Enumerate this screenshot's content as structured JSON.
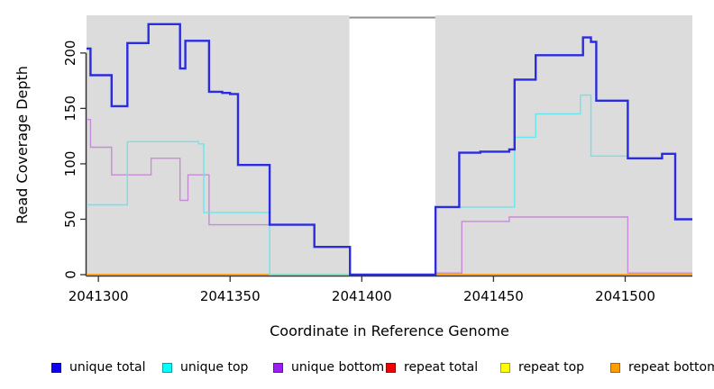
{
  "chart_data": {
    "type": "step",
    "title": "",
    "xlabel": "Coordinate in Reference Genome",
    "ylabel": "Read Coverage Depth",
    "xlim": [
      2041295.5,
      2041525.5
    ],
    "ylim": [
      0,
      234
    ],
    "xticks": [
      2041300,
      2041350,
      2041400,
      2041450,
      2041500
    ],
    "yticks": [
      0,
      50,
      100,
      150,
      200
    ],
    "grid": false,
    "plot_bg": "#dcdcdc",
    "outer_bg": "#ffffff",
    "axis_color": "#333333",
    "coverage_regions": [
      {
        "from": 2041295.5,
        "to": 2041395.3
      },
      {
        "from": 2041427.9,
        "to": 2041525.5
      }
    ],
    "gap": {
      "from": 2041395.3,
      "to": 2041427.9,
      "top_line_value": 232,
      "top_line_color": "#8f8f8f"
    },
    "series": [
      {
        "name": "repeat total",
        "line_color": "#e00000",
        "lwd": 1.2,
        "points": [
          [
            2041295.5,
            0
          ]
        ]
      },
      {
        "name": "repeat top",
        "line_color": "#ffff00",
        "lwd": 1.2,
        "points": [
          [
            2041295.5,
            0
          ]
        ]
      },
      {
        "name": "repeat bottom",
        "line_color": "#ff9d17",
        "lwd": 1.8,
        "points": [
          [
            2041295.5,
            0
          ]
        ]
      },
      {
        "name": "unique bottom",
        "line_color": "#c78ad8",
        "lwd": 1.4,
        "points": [
          [
            2041295.5,
            140
          ],
          [
            2041297,
            115
          ],
          [
            2041305,
            90
          ],
          [
            2041320,
            105
          ],
          [
            2041331,
            67
          ],
          [
            2041334,
            90
          ],
          [
            2041342,
            45
          ],
          [
            2041382,
            25
          ],
          [
            2041395.5,
            0
          ],
          [
            2041428,
            1.5
          ],
          [
            2041438,
            48
          ],
          [
            2041456,
            52
          ],
          [
            2041501,
            1.5
          ]
        ]
      },
      {
        "name": "unique top",
        "line_color": "#66e7ef",
        "lwd": 1.4,
        "points": [
          [
            2041295.5,
            63
          ],
          [
            2041311,
            120
          ],
          [
            2041338,
            118
          ],
          [
            2041340,
            56
          ],
          [
            2041365,
            0
          ],
          [
            2041428,
            61
          ],
          [
            2041458,
            124
          ],
          [
            2041466,
            145
          ],
          [
            2041483,
            162
          ],
          [
            2041487,
            107
          ],
          [
            2041501,
            105
          ],
          [
            2041514,
            109
          ],
          [
            2041519,
            50
          ]
        ]
      },
      {
        "name": "unique total",
        "line_color": "#2b2be0",
        "lwd": 2.4,
        "points": [
          [
            2041295.5,
            204
          ],
          [
            2041297,
            180
          ],
          [
            2041305,
            152
          ],
          [
            2041311,
            209
          ],
          [
            2041319,
            226
          ],
          [
            2041331,
            186
          ],
          [
            2041333,
            211
          ],
          [
            2041342,
            165
          ],
          [
            2041347,
            164
          ],
          [
            2041350,
            163
          ],
          [
            2041353,
            99
          ],
          [
            2041365,
            45
          ],
          [
            2041382,
            25
          ],
          [
            2041395.5,
            0
          ],
          [
            2041428,
            61
          ],
          [
            2041437,
            110
          ],
          [
            2041445,
            111
          ],
          [
            2041456,
            113
          ],
          [
            2041458,
            176
          ],
          [
            2041466,
            198
          ],
          [
            2041484,
            214
          ],
          [
            2041487,
            210
          ],
          [
            2041489,
            157
          ],
          [
            2041501,
            105
          ],
          [
            2041514,
            109
          ],
          [
            2041519,
            50
          ]
        ]
      }
    ],
    "legend": {
      "position": "bottom",
      "entries": [
        {
          "label": "unique total",
          "color": "#0d00f0"
        },
        {
          "label": "unique top",
          "color": "#00ffff"
        },
        {
          "label": "unique bottom",
          "color": "#9a1ff0"
        },
        {
          "label": "repeat total",
          "color": "#f00000"
        },
        {
          "label": "repeat top",
          "color": "#ffff00"
        },
        {
          "label": "repeat bottom",
          "color": "#ff9c00"
        }
      ]
    }
  }
}
